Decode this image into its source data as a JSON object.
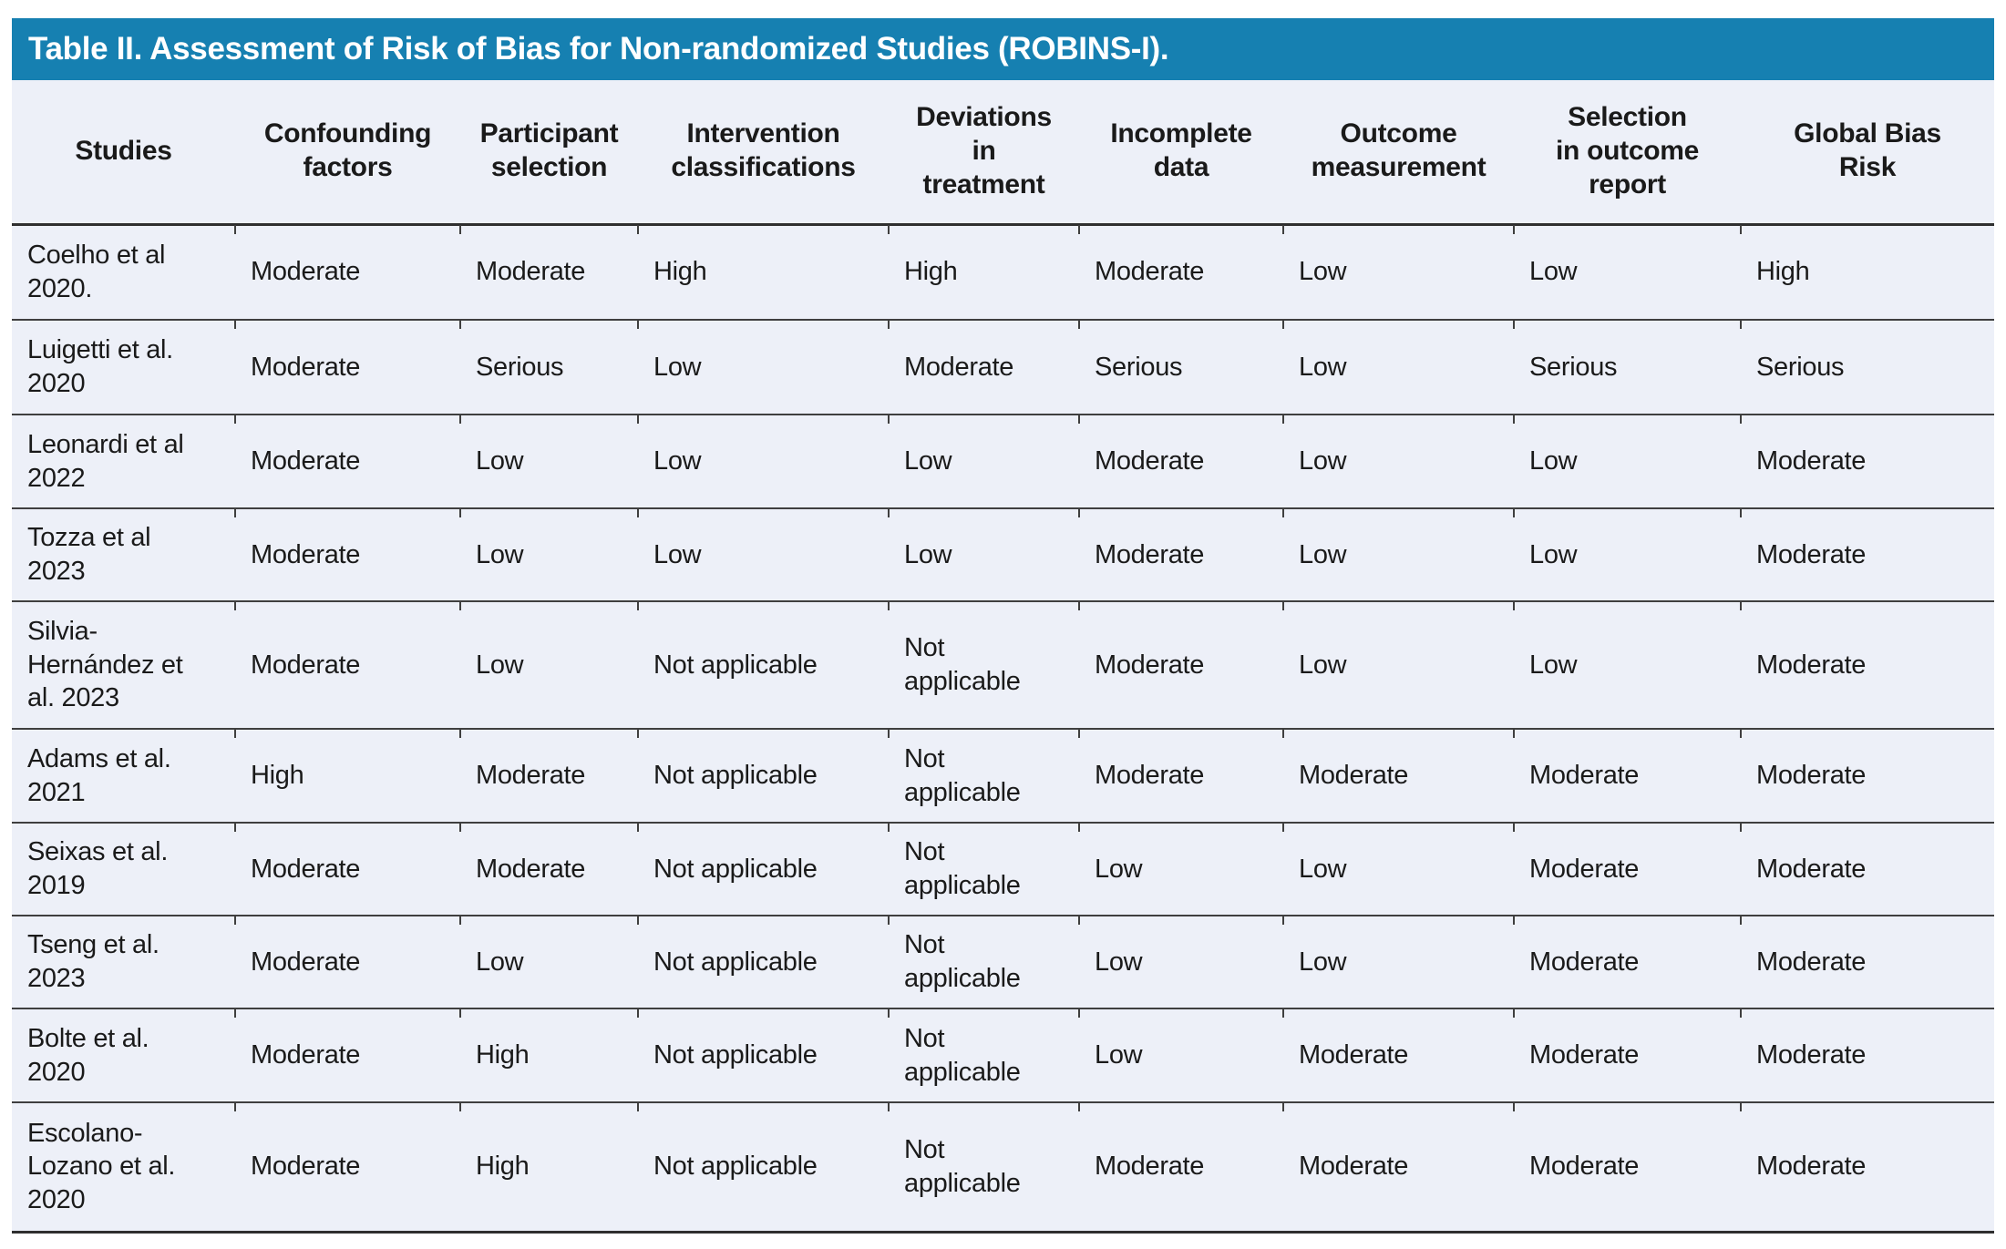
{
  "title": "Table II. Assessment of Risk of Bias for Non-randomized Studies (ROBINS-I).",
  "colors": {
    "title_bar": "#1680b1",
    "table_background": "#edf0f8",
    "rule": "#3f3f3f",
    "title_text": "#ffffff"
  },
  "table": {
    "columns": [
      "Studies",
      "Confounding\nfactors",
      "Participant\nselection",
      "Intervention\nclassifications",
      "Deviations\nin\ntreatment",
      "Incomplete\ndata",
      "Outcome\nmeasurement",
      "Selection\nin outcome\nreport",
      "Global Bias\nRisk"
    ],
    "rows": [
      {
        "study": "Coelho et al\n2020.",
        "values": [
          "Moderate",
          "Moderate",
          "High",
          "High",
          "Moderate",
          "Low",
          "Low",
          "High"
        ]
      },
      {
        "study": "Luigetti et al.\n2020",
        "values": [
          "Moderate",
          "Serious",
          "Low",
          "Moderate",
          "Serious",
          "Low",
          "Serious",
          "Serious"
        ]
      },
      {
        "study": "Leonardi et al\n2022",
        "values": [
          "Moderate",
          "Low",
          "Low",
          "Low",
          "Moderate",
          "Low",
          "Low",
          "Moderate"
        ]
      },
      {
        "study": "Tozza et al\n2023",
        "values": [
          "Moderate",
          "Low",
          "Low",
          "Low",
          "Moderate",
          "Low",
          "Low",
          "Moderate"
        ]
      },
      {
        "study": "Silvia-\nHernández et\nal. 2023",
        "values": [
          "Moderate",
          "Low",
          "Not applicable",
          "Not\napplicable",
          "Moderate",
          "Low",
          "Low",
          "Moderate"
        ]
      },
      {
        "study": "Adams et al.\n2021",
        "values": [
          "High",
          "Moderate",
          "Not applicable",
          "Not\napplicable",
          "Moderate",
          "Moderate",
          "Moderate",
          "Moderate"
        ]
      },
      {
        "study": "Seixas et al.\n2019",
        "values": [
          "Moderate",
          "Moderate",
          "Not applicable",
          "Not\napplicable",
          "Low",
          "Low",
          "Moderate",
          "Moderate"
        ]
      },
      {
        "study": "Tseng et al.\n2023",
        "values": [
          "Moderate",
          "Low",
          "Not applicable",
          "Not\napplicable",
          "Low",
          "Low",
          "Moderate",
          "Moderate"
        ]
      },
      {
        "study": "Bolte et al.\n2020",
        "values": [
          "Moderate",
          "High",
          "Not applicable",
          "Not\napplicable",
          "Low",
          "Moderate",
          "Moderate",
          "Moderate"
        ]
      },
      {
        "study": "Escolano-\nLozano et al.\n2020",
        "values": [
          "Moderate",
          "High",
          "Not applicable",
          "Not\napplicable",
          "Moderate",
          "Moderate",
          "Moderate",
          "Moderate"
        ]
      }
    ]
  }
}
